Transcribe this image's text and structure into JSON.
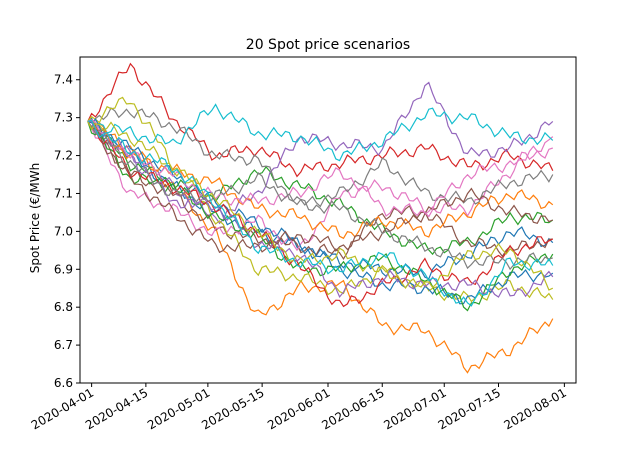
{
  "chart_data": {
    "type": "line",
    "title": "20 Spot price scenarios",
    "xlabel": "",
    "ylabel": "Spot Price (€/MWh",
    "x_start": "2020-03-29",
    "x_end": "2020-08-04",
    "ylim": [
      6.6,
      7.46
    ],
    "x_ticks": [
      "2020-04-01",
      "2020-04-15",
      "2020-05-01",
      "2020-05-15",
      "2020-06-01",
      "2020-06-15",
      "2020-07-01",
      "2020-07-15",
      "2020-08-01"
    ],
    "y_ticks": [
      "6.6",
      "6.7",
      "6.8",
      "6.9",
      "7.0",
      "7.1",
      "7.2",
      "7.3",
      "7.4"
    ],
    "grid": false,
    "legend": "none",
    "series": [
      {
        "color": "#1f77b4",
        "values": [
          7.29,
          7.2,
          7.12,
          7.05,
          7.0,
          6.96,
          6.92,
          6.9,
          6.89,
          6.94,
          7.0,
          6.97
        ]
      },
      {
        "color": "#ff7f0e",
        "values": [
          7.29,
          7.22,
          7.12,
          7.0,
          6.77,
          6.85,
          6.86,
          6.75,
          6.74,
          6.64,
          6.69,
          6.77
        ]
      },
      {
        "color": "#2ca02c",
        "values": [
          7.29,
          7.18,
          7.13,
          7.09,
          7.16,
          7.12,
          7.07,
          7.0,
          6.95,
          6.97,
          7.04,
          7.03
        ]
      },
      {
        "color": "#d62728",
        "values": [
          7.29,
          7.44,
          7.3,
          7.2,
          7.22,
          7.16,
          7.18,
          7.2,
          7.22,
          7.17,
          7.2,
          7.16
        ]
      },
      {
        "color": "#9467bd",
        "values": [
          7.29,
          7.2,
          7.12,
          7.03,
          7.1,
          7.25,
          7.23,
          7.22,
          7.39,
          7.2,
          7.22,
          7.29
        ]
      },
      {
        "color": "#8c564b",
        "values": [
          7.29,
          7.15,
          7.1,
          7.01,
          6.98,
          6.96,
          6.94,
          7.05,
          7.05,
          6.97,
          6.95,
          6.98
        ]
      },
      {
        "color": "#e377c2",
        "values": [
          7.29,
          7.1,
          7.06,
          6.99,
          7.03,
          6.95,
          7.1,
          7.12,
          7.06,
          7.06,
          7.16,
          7.25
        ]
      },
      {
        "color": "#7f7f7f",
        "values": [
          7.29,
          7.32,
          7.28,
          7.2,
          7.19,
          7.07,
          7.1,
          7.18,
          7.1,
          7.08,
          7.13,
          7.15
        ]
      },
      {
        "color": "#bcbd22",
        "values": [
          7.29,
          7.35,
          7.18,
          7.04,
          6.9,
          6.88,
          6.84,
          6.9,
          6.85,
          6.82,
          6.86,
          6.82
        ]
      },
      {
        "color": "#17becf",
        "values": [
          7.29,
          7.26,
          7.23,
          7.33,
          7.26,
          7.25,
          7.2,
          7.24,
          7.31,
          7.3,
          7.25,
          7.24
        ]
      },
      {
        "color": "#1f77b4",
        "values": [
          7.29,
          7.22,
          7.15,
          7.08,
          7.02,
          6.97,
          6.9,
          6.86,
          6.85,
          6.82,
          6.88,
          6.89
        ]
      },
      {
        "color": "#ff7f0e",
        "values": [
          7.29,
          7.2,
          7.16,
          7.13,
          7.06,
          7.04,
          6.99,
          7.03,
          7.0,
          7.05,
          7.1,
          7.07
        ]
      },
      {
        "color": "#2ca02c",
        "values": [
          7.29,
          7.14,
          7.12,
          7.04,
          6.99,
          6.9,
          6.9,
          6.93,
          6.87,
          6.8,
          6.9,
          6.94
        ]
      },
      {
        "color": "#d62728",
        "values": [
          7.29,
          7.16,
          7.12,
          7.07,
          7.0,
          6.91,
          6.8,
          6.86,
          6.91,
          6.86,
          6.95,
          6.98
        ]
      },
      {
        "color": "#9467bd",
        "values": [
          7.29,
          7.2,
          7.08,
          7.07,
          6.97,
          6.94,
          6.84,
          6.88,
          6.86,
          6.86,
          6.83,
          6.88
        ]
      },
      {
        "color": "#8c564b",
        "values": [
          7.29,
          7.14,
          7.05,
          6.96,
          6.96,
          6.99,
          6.96,
          7.0,
          7.05,
          7.1,
          7.05,
          7.03
        ]
      },
      {
        "color": "#e377c2",
        "values": [
          7.29,
          7.2,
          7.15,
          7.09,
          7.08,
          7.1,
          7.16,
          7.06,
          7.05,
          7.15,
          7.18,
          7.22
        ]
      },
      {
        "color": "#7f7f7f",
        "values": [
          7.29,
          7.18,
          7.1,
          7.09,
          7.14,
          7.07,
          7.06,
          7.0,
          6.96,
          6.92,
          6.92,
          6.93
        ]
      },
      {
        "color": "#bcbd22",
        "values": [
          7.29,
          7.25,
          7.17,
          7.09,
          7.0,
          6.92,
          6.94,
          6.89,
          6.85,
          6.94,
          6.95,
          6.85
        ]
      },
      {
        "color": "#17becf",
        "values": [
          7.29,
          7.21,
          7.17,
          7.08,
          6.96,
          6.92,
          6.9,
          6.94,
          6.88,
          6.8,
          6.92,
          6.91
        ]
      }
    ]
  }
}
